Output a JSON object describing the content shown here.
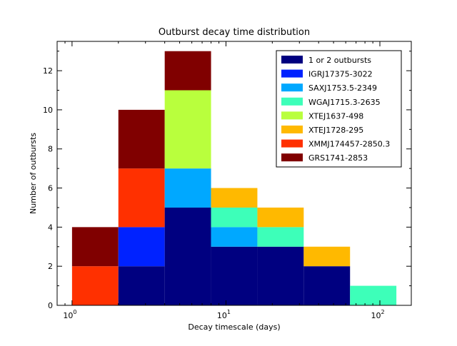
{
  "chart_data": {
    "type": "bar",
    "stacked": true,
    "title": "Outburst decay time distribution",
    "xlabel": "Decay timescale (days)",
    "ylabel": "Number of outbursts",
    "xscale": "log",
    "xlim": [
      0.8,
      160
    ],
    "ylim": [
      0,
      13.5
    ],
    "xticks": [
      {
        "value": 1,
        "base": "10",
        "exp": "0"
      },
      {
        "value": 10,
        "base": "10",
        "exp": "1"
      },
      {
        "value": 100,
        "base": "10",
        "exp": "2"
      }
    ],
    "yticks": [
      {
        "value": 0,
        "label": "0"
      },
      {
        "value": 2,
        "label": "2"
      },
      {
        "value": 4,
        "label": "4"
      },
      {
        "value": 6,
        "label": "6"
      },
      {
        "value": 8,
        "label": "8"
      },
      {
        "value": 10,
        "label": "10"
      },
      {
        "value": 12,
        "label": "12"
      }
    ],
    "bin_edges": [
      1,
      2,
      4,
      8,
      16,
      32,
      64,
      128
    ],
    "grid": false,
    "legend_position": "top-right",
    "series": [
      {
        "name": "1 or 2 outbursts",
        "color": "#000080",
        "values": [
          0,
          2,
          5,
          3,
          3,
          2,
          0
        ]
      },
      {
        "name": "IGRJ17375-3022",
        "color": "#0022ff",
        "values": [
          0,
          2,
          0,
          0,
          0,
          0,
          0
        ]
      },
      {
        "name": "SAXJ1753.5-2349",
        "color": "#00a8ff",
        "values": [
          0,
          0,
          2,
          1,
          0,
          0,
          0
        ]
      },
      {
        "name": "WGAJ1715.3-2635",
        "color": "#3dffb9",
        "values": [
          0,
          0,
          0,
          1,
          1,
          0,
          1
        ]
      },
      {
        "name": "XTEJ1637-498",
        "color": "#b9ff3d",
        "values": [
          0,
          0,
          4,
          0,
          0,
          0,
          0
        ]
      },
      {
        "name": "XTEJ1728-295",
        "color": "#ffb900",
        "values": [
          0,
          0,
          0,
          1,
          1,
          1,
          0
        ]
      },
      {
        "name": "XMMJ174457-2850.3",
        "color": "#ff3000",
        "values": [
          2,
          3,
          0,
          0,
          0,
          0,
          0
        ]
      },
      {
        "name": "GRS1741-2853",
        "color": "#800000",
        "values": [
          2,
          3,
          2,
          0,
          0,
          0,
          0
        ]
      }
    ]
  }
}
